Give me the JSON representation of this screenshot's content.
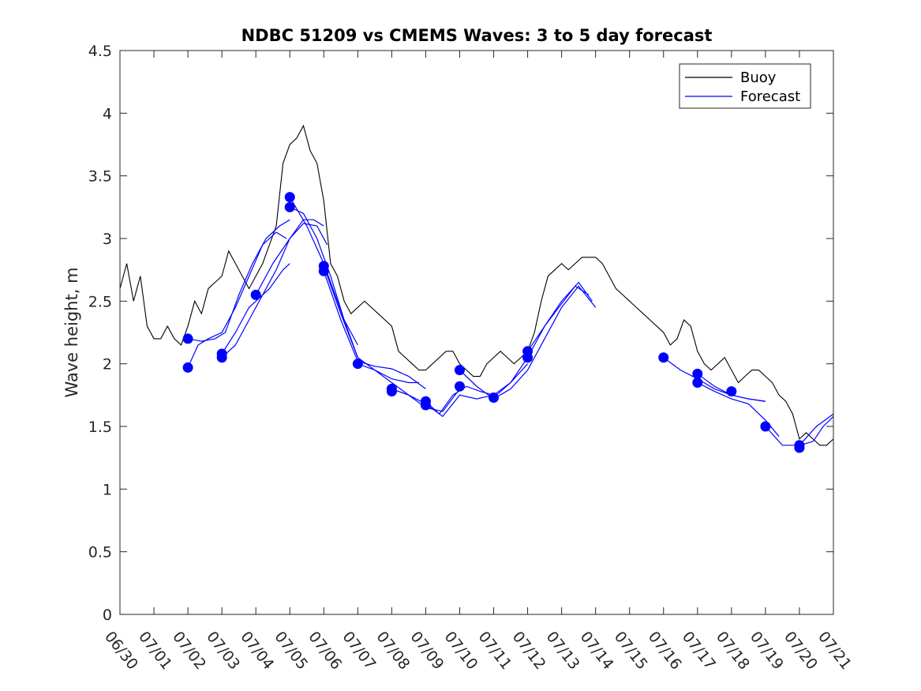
{
  "chart_data": {
    "type": "line",
    "title": "NDBC 51209 vs CMEMS Waves: 3 to 5 day forecast",
    "xlabel": "",
    "ylabel": "Wave height, m",
    "xlim": [
      "06/30",
      "07/21"
    ],
    "ylim": [
      0,
      4.5
    ],
    "x_tick_labels": [
      "06/30",
      "07/01",
      "07/02",
      "07/03",
      "07/04",
      "07/05",
      "07/06",
      "07/07",
      "07/08",
      "07/09",
      "07/10",
      "07/11",
      "07/12",
      "07/13",
      "07/14",
      "07/15",
      "07/16",
      "07/17",
      "07/18",
      "07/19",
      "07/20",
      "07/21"
    ],
    "y_tick_labels": [
      "0",
      "0.5",
      "1",
      "1.5",
      "2",
      "2.5",
      "3",
      "3.5",
      "4",
      "4.5"
    ],
    "y_ticks": [
      0,
      0.5,
      1,
      1.5,
      2,
      2.5,
      3,
      3.5,
      4,
      4.5
    ],
    "x_unit": "days after 06/30 00:00",
    "grid": false,
    "legend": {
      "position": "top-right",
      "entries": [
        {
          "label": "Buoy",
          "color": "#000000"
        },
        {
          "label": "Forecast",
          "color": "#0000ff"
        }
      ]
    },
    "colors": {
      "buoy": "#000000",
      "forecast": "#0000ff"
    },
    "series": [
      {
        "name": "Buoy",
        "x": [
          0.0,
          0.2,
          0.4,
          0.6,
          0.8,
          1.0,
          1.2,
          1.4,
          1.6,
          1.8,
          2.0,
          2.2,
          2.4,
          2.6,
          2.8,
          3.0,
          3.2,
          3.4,
          3.6,
          3.8,
          4.0,
          4.2,
          4.4,
          4.6,
          4.8,
          5.0,
          5.2,
          5.4,
          5.6,
          5.8,
          6.0,
          6.2,
          6.4,
          6.6,
          6.8,
          7.0,
          7.2,
          7.4,
          7.6,
          7.8,
          8.0,
          8.2,
          8.4,
          8.6,
          8.8,
          9.0,
          9.2,
          9.4,
          9.6,
          9.8,
          10.0,
          10.2,
          10.4,
          10.6,
          10.8,
          11.0,
          11.2,
          11.4,
          11.6,
          11.8,
          12.0,
          12.2,
          12.4,
          12.6,
          12.8,
          13.0,
          13.2,
          13.4,
          13.6,
          13.8,
          14.0,
          14.2,
          14.4,
          14.6,
          14.8,
          15.0,
          15.2,
          15.4,
          15.6,
          15.8,
          16.0,
          16.2,
          16.4,
          16.6,
          16.8,
          17.0,
          17.2,
          17.4,
          17.6,
          17.8,
          18.0,
          18.2,
          18.4,
          18.6,
          18.8,
          19.0,
          19.2,
          19.4,
          19.6,
          19.8,
          20.0,
          20.2,
          20.4,
          20.6,
          20.8,
          21.0
        ],
        "y": [
          2.6,
          2.8,
          2.5,
          2.7,
          2.3,
          2.2,
          2.2,
          2.3,
          2.2,
          2.15,
          2.3,
          2.5,
          2.4,
          2.6,
          2.65,
          2.7,
          2.9,
          2.8,
          2.7,
          2.6,
          2.7,
          2.8,
          2.95,
          3.1,
          3.6,
          3.75,
          3.8,
          3.9,
          3.7,
          3.6,
          3.3,
          2.8,
          2.7,
          2.5,
          2.4,
          2.45,
          2.5,
          2.45,
          2.4,
          2.35,
          2.3,
          2.1,
          2.05,
          2.0,
          1.95,
          1.95,
          2.0,
          2.05,
          2.1,
          2.1,
          2.0,
          1.95,
          1.9,
          1.9,
          2.0,
          2.05,
          2.1,
          2.05,
          2.0,
          2.05,
          2.1,
          2.25,
          2.5,
          2.7,
          2.75,
          2.8,
          2.75,
          2.8,
          2.85,
          2.85,
          2.85,
          2.8,
          2.7,
          2.6,
          2.55,
          2.5,
          2.45,
          2.4,
          2.35,
          2.3,
          2.25,
          2.15,
          2.2,
          2.35,
          2.3,
          2.1,
          2.0,
          1.95,
          2.0,
          2.05,
          1.95,
          1.85,
          1.9,
          1.95,
          1.95,
          1.9,
          1.85,
          1.75,
          1.7,
          1.6,
          1.4,
          1.45,
          1.4,
          1.35,
          1.35,
          1.4
        ]
      },
      {
        "name": "Forecast",
        "segments": [
          {
            "x": [
              2.0,
              2.3,
              2.6,
              3.0,
              3.4,
              3.8,
              4.2,
              4.6,
              4.9
            ],
            "y": [
              1.97,
              2.15,
              2.2,
              2.25,
              2.45,
              2.7,
              2.95,
              3.05,
              3.0
            ]
          },
          {
            "x": [
              2.0,
              2.4,
              2.8,
              3.1,
              3.5,
              3.9,
              4.3,
              4.7,
              5.0
            ],
            "y": [
              2.2,
              2.18,
              2.2,
              2.25,
              2.55,
              2.8,
              3.0,
              3.1,
              3.15
            ]
          },
          {
            "x": [
              3.0,
              3.4,
              3.8,
              4.2,
              4.6,
              5.0,
              5.4,
              5.7,
              6.0
            ],
            "y": [
              2.05,
              2.15,
              2.35,
              2.55,
              2.75,
              3.0,
              3.15,
              3.15,
              3.1
            ]
          },
          {
            "x": [
              3.0,
              3.4,
              3.8,
              4.0,
              4.4,
              4.8,
              5.0
            ],
            "y": [
              2.08,
              2.25,
              2.45,
              2.5,
              2.6,
              2.75,
              2.8
            ]
          },
          {
            "x": [
              4.0,
              4.5,
              5.0,
              5.4,
              5.8,
              6.1
            ],
            "y": [
              2.55,
              2.8,
              3.0,
              3.12,
              3.1,
              2.95
            ]
          },
          {
            "x": [
              5.0,
              5.4,
              5.8,
              6.2,
              6.6,
              7.0
            ],
            "y": [
              3.25,
              3.2,
              3.0,
              2.7,
              2.35,
              2.15
            ]
          },
          {
            "x": [
              5.0,
              5.5,
              6.0,
              6.4,
              6.8,
              7.0
            ],
            "y": [
              3.33,
              3.1,
              2.8,
              2.5,
              2.2,
              2.05
            ]
          },
          {
            "x": [
              6.0,
              6.5,
              7.0,
              7.5,
              8.0,
              8.5,
              8.8
            ],
            "y": [
              2.78,
              2.4,
              2.05,
              1.95,
              1.88,
              1.85,
              1.85
            ]
          },
          {
            "x": [
              6.0,
              6.5,
              7.0,
              7.5,
              8.0,
              8.5,
              9.0
            ],
            "y": [
              2.74,
              2.35,
              2.02,
              1.98,
              1.96,
              1.9,
              1.8
            ]
          },
          {
            "x": [
              7.0,
              7.5,
              8.0,
              8.5,
              9.0,
              9.5,
              10.0
            ],
            "y": [
              2.0,
              1.95,
              1.85,
              1.75,
              1.65,
              1.62,
              1.8
            ]
          },
          {
            "x": [
              8.0,
              8.5,
              9.0,
              9.5,
              10.0,
              10.5,
              11.0
            ],
            "y": [
              1.8,
              1.75,
              1.68,
              1.58,
              1.75,
              1.72,
              1.75
            ]
          },
          {
            "x": [
              9.0,
              9.4,
              9.8,
              10.2,
              10.6,
              11.0,
              11.5,
              12.0
            ],
            "y": [
              1.7,
              1.6,
              1.75,
              1.82,
              1.78,
              1.75,
              1.85,
              2.0
            ]
          },
          {
            "x": [
              10.0,
              10.5,
              11.0,
              11.5,
              12.0,
              12.5,
              13.0,
              13.5,
              14.0
            ],
            "y": [
              1.95,
              1.82,
              1.72,
              1.8,
              1.95,
              2.2,
              2.45,
              2.62,
              2.45
            ]
          },
          {
            "x": [
              11.0,
              11.5,
              12.0,
              12.5,
              13.0,
              13.5,
              13.9
            ],
            "y": [
              1.73,
              1.85,
              2.05,
              2.3,
              2.5,
              2.65,
              2.5
            ]
          },
          {
            "x": [
              12.0,
              12.5,
              13.0,
              13.4,
              13.8
            ],
            "y": [
              2.1,
              2.3,
              2.48,
              2.62,
              2.55
            ]
          },
          {
            "x": [
              16.0,
              16.5,
              17.0,
              17.5,
              18.0,
              18.5,
              19.0
            ],
            "y": [
              2.05,
              1.95,
              1.88,
              1.8,
              1.75,
              1.72,
              1.7
            ]
          },
          {
            "x": [
              17.0,
              17.5,
              18.0,
              18.5,
              19.0
            ],
            "y": [
              1.92,
              1.82,
              1.75,
              1.72,
              1.7
            ]
          },
          {
            "x": [
              17.0,
              17.5,
              18.0,
              18.5,
              19.0,
              19.4
            ],
            "y": [
              1.85,
              1.78,
              1.72,
              1.68,
              1.55,
              1.42
            ]
          },
          {
            "x": [
              19.0,
              19.5,
              20.0,
              20.5,
              21.0
            ],
            "y": [
              1.5,
              1.35,
              1.35,
              1.5,
              1.6
            ]
          },
          {
            "x": [
              20.0,
              20.4,
              20.7,
              21.0
            ],
            "y": [
              1.35,
              1.38,
              1.5,
              1.58
            ]
          }
        ],
        "markers": {
          "x": [
            2.0,
            2.0,
            3.0,
            3.0,
            4.0,
            5.0,
            5.0,
            6.0,
            6.0,
            7.0,
            8.0,
            8.0,
            9.0,
            9.0,
            10.0,
            10.0,
            11.0,
            12.0,
            12.0,
            16.0,
            17.0,
            17.0,
            18.0,
            19.0,
            20.0,
            20.0
          ],
          "y": [
            1.97,
            2.2,
            2.05,
            2.08,
            2.55,
            3.25,
            3.33,
            2.78,
            2.74,
            2.0,
            1.8,
            1.78,
            1.7,
            1.67,
            1.95,
            1.82,
            1.73,
            2.1,
            2.05,
            2.05,
            1.92,
            1.85,
            1.78,
            1.5,
            1.35,
            1.33
          ]
        }
      }
    ]
  }
}
